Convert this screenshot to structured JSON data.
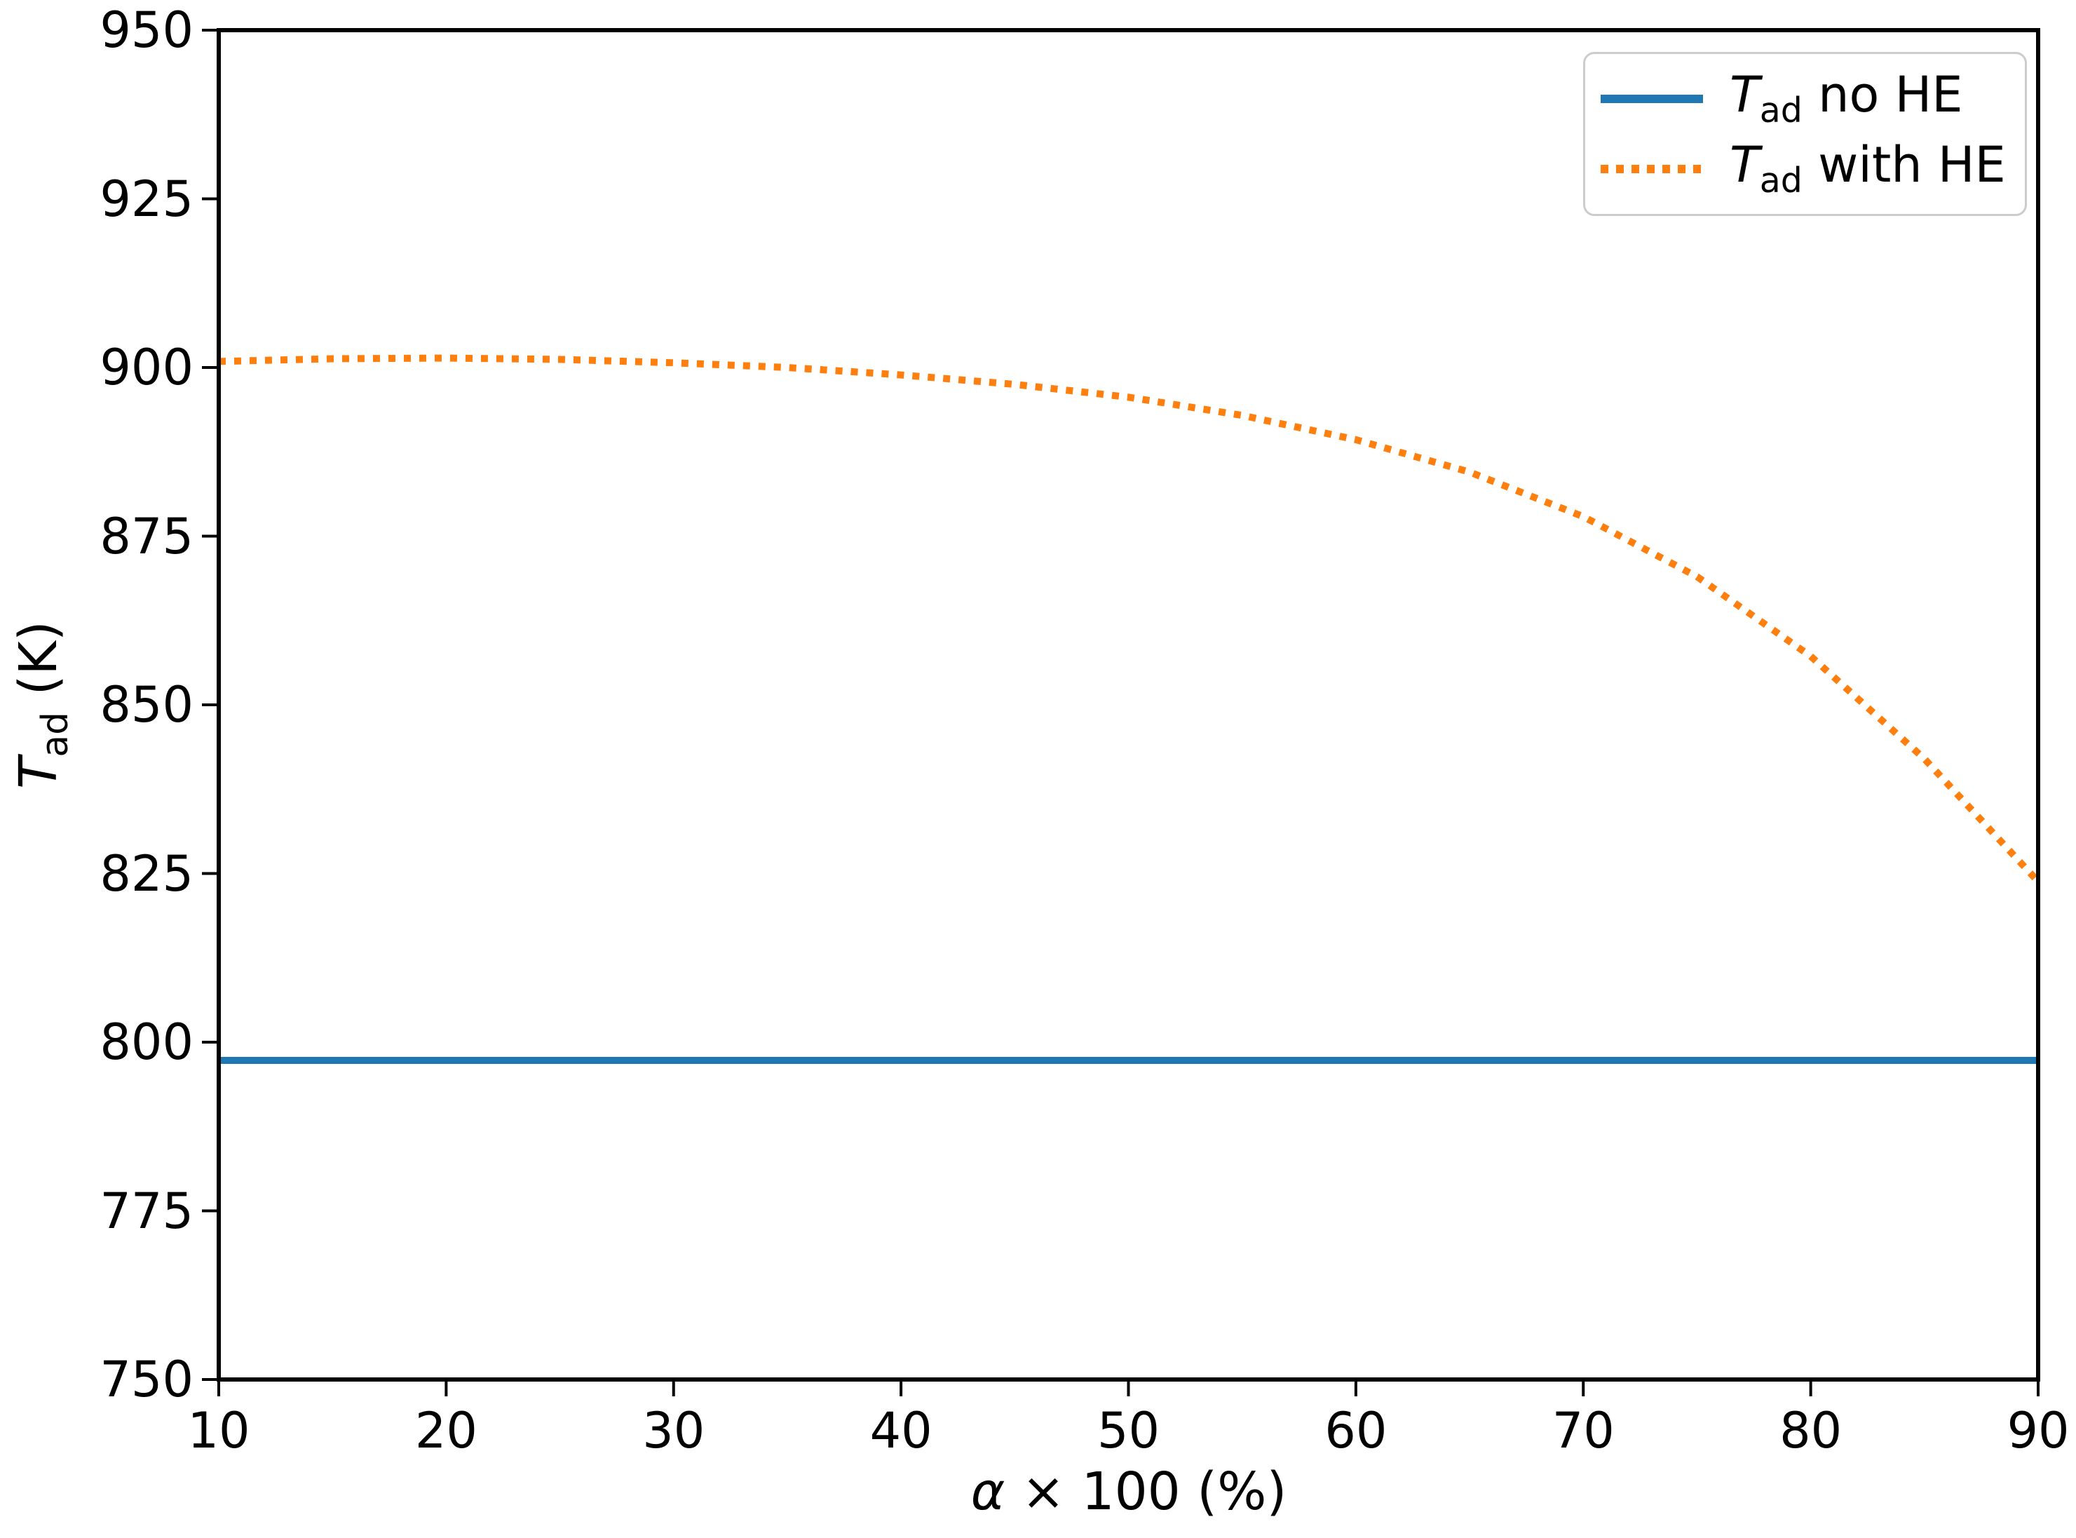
{
  "axes": {
    "xlabel": {
      "var": "α",
      "rest": " × 100 (%)"
    },
    "ylabel": {
      "sym": "T",
      "sub": "ad",
      "rest": " (K)"
    }
  },
  "legend": {
    "entries": [
      {
        "sym": "T",
        "sub": "ad",
        "rest": " no HE",
        "color": "#1f77b4",
        "style": "solid"
      },
      {
        "sym": "T",
        "sub": "ad",
        "rest": " with HE",
        "color": "#ff7f0e",
        "style": "dotted"
      }
    ]
  },
  "chart_data": {
    "type": "line",
    "title": "",
    "xlabel": "α × 100 (%)",
    "ylabel": "T_ad (K)",
    "xlim": [
      10,
      90
    ],
    "ylim": [
      750,
      950
    ],
    "xticks": [
      10,
      20,
      30,
      40,
      50,
      60,
      70,
      80,
      90
    ],
    "yticks": [
      750,
      775,
      800,
      825,
      850,
      875,
      900,
      925,
      950
    ],
    "grid": false,
    "legend_position": "upper right",
    "x": [
      10,
      15,
      20,
      25,
      30,
      35,
      40,
      45,
      50,
      55,
      60,
      65,
      70,
      75,
      80,
      85,
      90
    ],
    "series": [
      {
        "name": "T_ad no HE",
        "color": "#1f77b4",
        "style": "solid",
        "line_width": 10,
        "values": [
          797.3,
          797.3,
          797.3,
          797.3,
          797.3,
          797.3,
          797.3,
          797.3,
          797.3,
          797.3,
          797.3,
          797.3,
          797.3,
          797.3,
          797.3,
          797.3,
          797.3
        ]
      },
      {
        "name": "T_ad with HE",
        "color": "#ff7f0e",
        "style": "dotted",
        "line_width": 10,
        "values": [
          900.9,
          901.3,
          901.4,
          901.2,
          900.7,
          900.0,
          898.9,
          897.5,
          895.6,
          892.9,
          889.3,
          884.5,
          877.9,
          869.0,
          857.2,
          842.0,
          823.8
        ]
      }
    ]
  },
  "style": {
    "spine_color": "#000000",
    "spine_width": 6,
    "tick_length": 24,
    "tick_width": 4,
    "dot_dash": "10 12"
  }
}
